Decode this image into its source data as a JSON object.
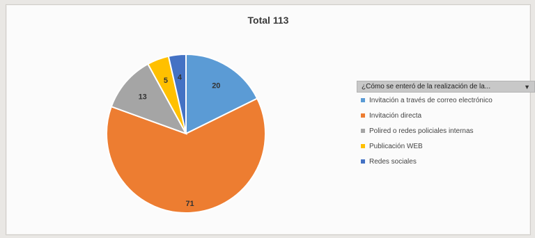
{
  "chart_data": {
    "type": "pie",
    "title": "Total 113",
    "categories": [
      "Invitación a través de correo electrónico",
      "Invitación directa",
      "Polired o redes policiales internas",
      "Publicación WEB",
      "Redes sociales"
    ],
    "values": [
      20,
      71,
      13,
      5,
      4
    ],
    "colors": [
      "#5b9bd5",
      "#ed7d31",
      "#a5a5a5",
      "#ffc000",
      "#4472c4"
    ],
    "legend_placement": "right"
  },
  "legend": {
    "header": "¿Cómo se enteró de la realización de la...",
    "dropdown_icon": "chevron-down-icon"
  }
}
